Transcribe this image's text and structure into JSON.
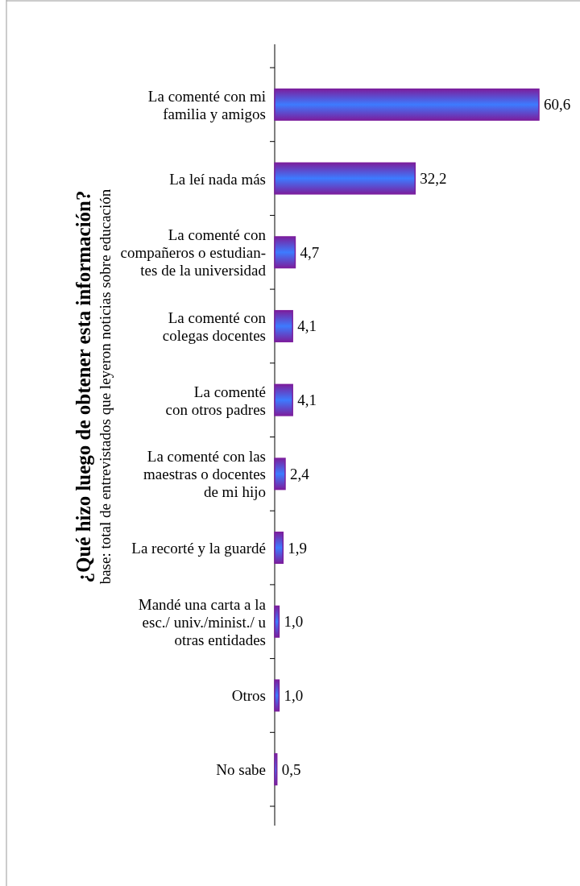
{
  "chart_data": {
    "type": "bar",
    "orientation": "horizontal",
    "title": "¿Qué hizo luego de obtener esta información?",
    "subtitle": "base: total de entrevistados que leyeron noticias sobre educación",
    "categories": [
      "La comenté con mi\nfamilia y amigos",
      "La leí nada más",
      "La comenté con\ncompañeros o estudian-\ntes de la universidad",
      "La comenté con\ncolegas docentes",
      "La comenté\ncon otros padres",
      "La comenté con las\nmaestras o docentes\nde mi hijo",
      "La recorté y la guardé",
      "Mandé una carta a la\nesc./ univ./minist./ u\notras entidades",
      "Otros",
      "No sabe"
    ],
    "values": [
      60.6,
      32.2,
      4.7,
      4.1,
      4.1,
      2.4,
      1.9,
      1.0,
      1.0,
      0.5
    ],
    "value_labels": [
      "60,6",
      "32,2",
      "4,7",
      "4,1",
      "4,1",
      "2,4",
      "1,9",
      "1,0",
      "1,0",
      "0,5"
    ],
    "color": "#7b1f9e"
  }
}
